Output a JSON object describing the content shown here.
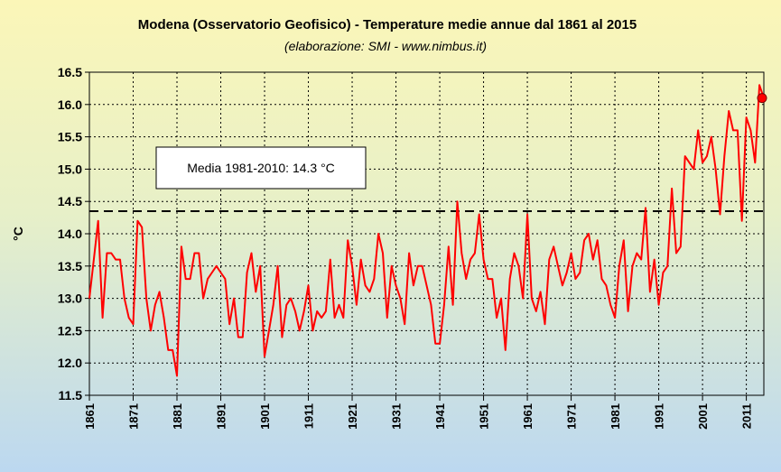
{
  "chart_data": {
    "type": "line",
    "title": "Modena (Osservatorio Geofisico) - Temperature medie annue dal 1861 al 2015",
    "subtitle": "(elaborazione: SMI - www.nimbus.it)",
    "xlabel": "",
    "ylabel": "°C",
    "ylim": [
      11.5,
      16.5
    ],
    "xlim": [
      1861,
      2015
    ],
    "yticks": [
      "11.5",
      "12.0",
      "12.5",
      "13.0",
      "13.5",
      "14.0",
      "14.5",
      "15.0",
      "15.5",
      "16.0",
      "16.5"
    ],
    "xticks": [
      "1861",
      "1871",
      "1881",
      "1891",
      "1901",
      "1911",
      "1921",
      "1931",
      "1941",
      "1951",
      "1961",
      "1971",
      "1981",
      "1991",
      "2001",
      "2011"
    ],
    "grid": true,
    "reference_line": {
      "value": 14.35,
      "style": "dashed",
      "color": "#000000"
    },
    "annotation": {
      "text": "Media 1981-2010: 14.3 °C"
    },
    "highlight_point": {
      "x": 2015,
      "y": 16.1,
      "color": "#ff0000"
    },
    "series": [
      {
        "color": "#ff0000",
        "x": [
          1861,
          1862,
          1863,
          1864,
          1865,
          1866,
          1867,
          1868,
          1869,
          1870,
          1871,
          1872,
          1873,
          1874,
          1875,
          1876,
          1877,
          1878,
          1879,
          1880,
          1881,
          1882,
          1883,
          1884,
          1885,
          1886,
          1887,
          1888,
          1889,
          1890,
          1891,
          1892,
          1893,
          1894,
          1895,
          1896,
          1897,
          1898,
          1899,
          1900,
          1901,
          1902,
          1903,
          1904,
          1905,
          1906,
          1907,
          1908,
          1909,
          1910,
          1911,
          1912,
          1913,
          1914,
          1915,
          1916,
          1917,
          1918,
          1919,
          1920,
          1921,
          1922,
          1923,
          1924,
          1925,
          1926,
          1927,
          1928,
          1929,
          1930,
          1931,
          1932,
          1933,
          1934,
          1935,
          1936,
          1937,
          1938,
          1939,
          1940,
          1941,
          1942,
          1943,
          1944,
          1945,
          1946,
          1947,
          1948,
          1949,
          1950,
          1951,
          1952,
          1953,
          1954,
          1955,
          1956,
          1957,
          1958,
          1959,
          1960,
          1961,
          1962,
          1963,
          1964,
          1965,
          1966,
          1967,
          1968,
          1969,
          1970,
          1971,
          1972,
          1973,
          1974,
          1975,
          1976,
          1977,
          1978,
          1979,
          1980,
          1981,
          1982,
          1983,
          1984,
          1985,
          1986,
          1987,
          1988,
          1989,
          1990,
          1991,
          1992,
          1993,
          1994,
          1995,
          1996,
          1997,
          1998,
          1999,
          2000,
          2001,
          2002,
          2003,
          2004,
          2005,
          2006,
          2007,
          2008,
          2009,
          2010,
          2011,
          2012,
          2013,
          2014,
          2015
        ],
        "y": [
          13.0,
          13.6,
          14.2,
          12.7,
          13.7,
          13.7,
          13.6,
          13.6,
          13.0,
          12.7,
          12.6,
          14.2,
          14.1,
          13.0,
          12.5,
          12.9,
          13.1,
          12.7,
          12.2,
          12.2,
          11.8,
          13.8,
          13.3,
          13.3,
          13.7,
          13.7,
          13.0,
          13.3,
          13.4,
          13.5,
          13.4,
          13.3,
          12.6,
          13.0,
          12.4,
          12.4,
          13.4,
          13.7,
          13.1,
          13.5,
          12.1,
          12.5,
          12.9,
          13.5,
          12.4,
          12.9,
          13.0,
          12.8,
          12.5,
          12.8,
          13.2,
          12.5,
          12.8,
          12.7,
          12.8,
          13.6,
          12.7,
          12.9,
          12.7,
          13.9,
          13.5,
          12.9,
          13.6,
          13.2,
          13.1,
          13.3,
          14.0,
          13.7,
          12.7,
          13.5,
          13.2,
          13.0,
          12.6,
          13.7,
          13.2,
          13.5,
          13.5,
          13.2,
          12.9,
          12.3,
          12.3,
          12.9,
          13.8,
          12.9,
          14.5,
          13.7,
          13.3,
          13.6,
          13.7,
          14.3,
          13.6,
          13.3,
          13.3,
          12.7,
          13.0,
          12.2,
          13.3,
          13.7,
          13.5,
          13.0,
          14.3,
          13.0,
          12.8,
          13.1,
          12.6,
          13.6,
          13.8,
          13.5,
          13.2,
          13.4,
          13.7,
          13.3,
          13.4,
          13.9,
          14.0,
          13.6,
          13.9,
          13.3,
          13.2,
          12.9,
          12.7,
          13.5,
          13.9,
          12.8,
          13.5,
          13.7,
          13.6,
          14.4,
          13.1,
          13.6,
          12.9,
          13.4,
          13.5,
          14.7,
          13.7,
          13.8,
          15.2,
          15.1,
          15.0,
          15.6,
          15.1,
          15.2,
          15.5,
          15.0,
          14.3,
          15.2,
          15.9,
          15.6,
          15.6,
          14.2,
          15.8,
          15.6,
          15.1,
          16.3,
          16.1
        ]
      }
    ]
  }
}
